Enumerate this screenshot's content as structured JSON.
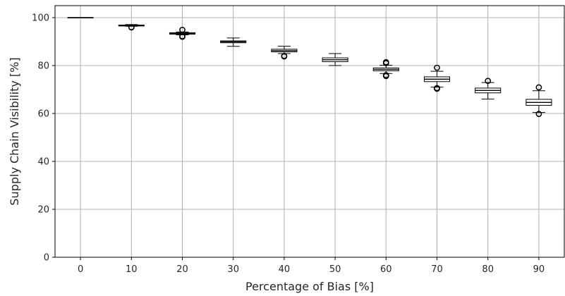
{
  "chart_data": {
    "type": "boxplot",
    "xlabel": "Percentage of Bias [%]",
    "ylabel": "Supply Chain Visibility [%]",
    "ylim": [
      0,
      105
    ],
    "yticks": [
      "0",
      "20",
      "40",
      "60",
      "80",
      "100"
    ],
    "grid": true,
    "categories": [
      "0",
      "10",
      "20",
      "30",
      "40",
      "50",
      "60",
      "70",
      "80",
      "90"
    ],
    "boxes": [
      {
        "category": "0",
        "whisker_low": 100.0,
        "q1": 100.0,
        "median": 100.0,
        "q3": 100.0,
        "whisker_high": 100.0,
        "outliers": []
      },
      {
        "category": "10",
        "whisker_low": 96.4,
        "q1": 96.5,
        "median": 96.7,
        "q3": 96.9,
        "whisker_high": 97.1,
        "outliers": [
          95.9,
          96.0
        ]
      },
      {
        "category": "20",
        "whisker_low": 92.8,
        "q1": 93.1,
        "median": 93.4,
        "q3": 93.7,
        "whisker_high": 94.0,
        "outliers": [
          92.0,
          92.2,
          94.9
        ]
      },
      {
        "category": "30",
        "whisker_low": 88.0,
        "q1": 89.5,
        "median": 89.9,
        "q3": 90.3,
        "whisker_high": 91.5,
        "outliers": []
      },
      {
        "category": "40",
        "whisker_low": 85.0,
        "q1": 85.7,
        "median": 86.2,
        "q3": 86.8,
        "whisker_high": 88.1,
        "outliers": [
          83.8,
          84.0
        ]
      },
      {
        "category": "50",
        "whisker_low": 80.0,
        "q1": 81.6,
        "median": 82.4,
        "q3": 83.2,
        "whisker_high": 85.0,
        "outliers": []
      },
      {
        "category": "60",
        "whisker_low": 76.7,
        "q1": 77.8,
        "median": 78.4,
        "q3": 79.0,
        "whisker_high": 80.1,
        "outliers": [
          75.6,
          76.0,
          81.0,
          81.4
        ]
      },
      {
        "category": "70",
        "whisker_low": 71.0,
        "q1": 73.3,
        "median": 74.3,
        "q3": 75.3,
        "whisker_high": 77.6,
        "outliers": [
          70.3,
          70.6,
          79.1
        ]
      },
      {
        "category": "80",
        "whisker_low": 66.0,
        "q1": 68.6,
        "median": 69.6,
        "q3": 70.6,
        "whisker_high": 72.9,
        "outliers": [
          73.6
        ]
      },
      {
        "category": "90",
        "whisker_low": 60.4,
        "q1": 63.4,
        "median": 64.6,
        "q3": 65.9,
        "whisker_high": 69.5,
        "outliers": [
          59.8,
          70.9
        ]
      }
    ],
    "colors": {
      "box": "#000000",
      "grid": "#b0b0b0",
      "background": "#ffffff"
    }
  }
}
